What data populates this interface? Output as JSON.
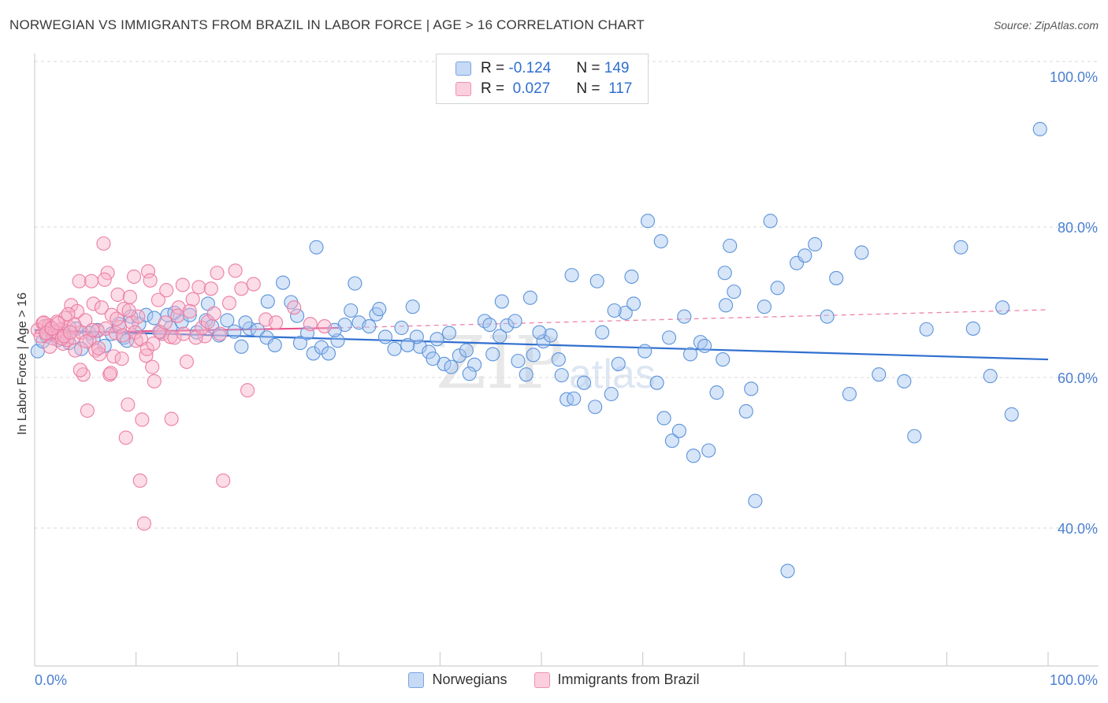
{
  "title": "NORWEGIAN VS IMMIGRANTS FROM BRAZIL IN LABOR FORCE | AGE > 16 CORRELATION CHART",
  "source": "Source: ZipAtlas.com",
  "watermark": {
    "zip": "ZIP",
    "atlas": "atlas"
  },
  "stats": {
    "r_label": "R =",
    "n_label": "N =",
    "rows": [
      {
        "r": "-0.124",
        "n": "149",
        "fill": "#c6d9f5",
        "stroke": "#7aa6e0"
      },
      {
        "r": " 0.027",
        "n": "117",
        "fill": "#fbcfdd",
        "stroke": "#ee93b2"
      }
    ]
  },
  "legend": {
    "items": [
      {
        "label": "Norwegians",
        "fill": "#c6d9f5",
        "stroke": "#7aa6e0"
      },
      {
        "label": "Immigrants from Brazil",
        "fill": "#fbcfdd",
        "stroke": "#ee93b2"
      }
    ]
  },
  "chart_data": {
    "type": "scatter",
    "title": "NORWEGIAN VS IMMIGRANTS FROM BRAZIL IN LABOR FORCE | AGE > 16 CORRELATION CHART",
    "xlabel": "",
    "ylabel": "In Labor Force | Age > 16",
    "x_tick_labels": [
      "0.0%",
      "100.0%"
    ],
    "y_tick_labels": [
      "100.0%",
      "80.0%",
      "60.0%",
      "40.0%"
    ],
    "y_ticks": [
      100,
      80,
      60,
      40
    ],
    "xlim": [
      0,
      100
    ],
    "ylim": [
      20,
      102
    ],
    "grid": true,
    "legend_position": "bottom",
    "colors": {
      "blue": "#5b93db",
      "pink": "#ec7ea3",
      "blue_line": "#2f6fcf",
      "pink_line": "#e8508a"
    },
    "series": [
      {
        "name": "Norwegians",
        "trend": {
          "x": [
            0,
            100
          ],
          "y": [
            66.3,
            62.4
          ],
          "dashed": false
        },
        "points": [
          [
            0.3,
            63.5
          ],
          [
            0.8,
            64.8
          ],
          [
            1.2,
            65.5
          ],
          [
            1.8,
            66.0
          ],
          [
            2.3,
            65.0
          ],
          [
            2.9,
            65.8
          ],
          [
            3.4,
            64.6
          ],
          [
            4.1,
            66.5
          ],
          [
            4.6,
            63.8
          ],
          [
            5.4,
            65.9
          ],
          [
            6.2,
            66.3
          ],
          [
            6.9,
            64.2
          ],
          [
            7.6,
            65.8
          ],
          [
            8.3,
            67.1
          ],
          [
            8.8,
            65.3
          ],
          [
            9.5,
            68.1
          ],
          [
            10.3,
            67.1
          ],
          [
            11.0,
            68.3
          ],
          [
            11.8,
            67.9
          ],
          [
            12.4,
            66.0
          ],
          [
            13.1,
            68.3
          ],
          [
            13.8,
            68.6
          ],
          [
            14.5,
            67.4
          ],
          [
            15.3,
            68.3
          ],
          [
            16.0,
            66.0
          ],
          [
            16.9,
            67.6
          ],
          [
            17.5,
            66.8
          ],
          [
            18.2,
            65.6
          ],
          [
            19.0,
            67.6
          ],
          [
            19.7,
            66.1
          ],
          [
            20.4,
            64.1
          ],
          [
            21.2,
            66.5
          ],
          [
            22.0,
            66.3
          ],
          [
            22.9,
            65.3
          ],
          [
            23.7,
            64.3
          ],
          [
            24.5,
            72.6
          ],
          [
            25.3,
            70.0
          ],
          [
            26.2,
            64.6
          ],
          [
            26.9,
            65.9
          ],
          [
            27.5,
            63.2
          ],
          [
            28.3,
            64.0
          ],
          [
            29.0,
            63.2
          ],
          [
            29.9,
            64.9
          ],
          [
            30.6,
            67.0
          ],
          [
            31.2,
            68.9
          ],
          [
            32.0,
            67.3
          ],
          [
            33.0,
            66.8
          ],
          [
            33.7,
            68.4
          ],
          [
            34.6,
            65.4
          ],
          [
            35.5,
            63.8
          ],
          [
            36.2,
            66.6
          ],
          [
            37.3,
            69.4
          ],
          [
            38.0,
            64.1
          ],
          [
            38.9,
            63.4
          ],
          [
            39.7,
            65.1
          ],
          [
            40.4,
            61.8
          ],
          [
            41.1,
            61.4
          ],
          [
            41.9,
            62.9
          ],
          [
            42.6,
            63.6
          ],
          [
            43.4,
            61.7
          ],
          [
            44.4,
            67.5
          ],
          [
            45.2,
            63.1
          ],
          [
            45.9,
            65.5
          ],
          [
            46.6,
            66.9
          ],
          [
            47.7,
            62.2
          ],
          [
            48.5,
            60.4
          ],
          [
            49.2,
            63.0
          ],
          [
            50.2,
            64.8
          ],
          [
            50.9,
            65.6
          ],
          [
            51.7,
            62.4
          ],
          [
            52.5,
            57.1
          ],
          [
            53.2,
            57.2
          ],
          [
            54.2,
            59.3
          ],
          [
            55.3,
            56.1
          ],
          [
            56.0,
            66.0
          ],
          [
            56.9,
            57.8
          ],
          [
            57.6,
            61.8
          ],
          [
            58.3,
            68.6
          ],
          [
            59.1,
            69.8
          ],
          [
            60.2,
            63.5
          ],
          [
            61.4,
            59.3
          ],
          [
            62.1,
            54.6
          ],
          [
            62.9,
            51.6
          ],
          [
            63.6,
            52.9
          ],
          [
            64.1,
            68.1
          ],
          [
            65.0,
            49.6
          ],
          [
            65.7,
            64.7
          ],
          [
            66.5,
            50.3
          ],
          [
            67.3,
            58.0
          ],
          [
            68.2,
            69.6
          ],
          [
            69.0,
            71.4
          ],
          [
            70.2,
            55.5
          ],
          [
            71.1,
            43.6
          ],
          [
            72.0,
            69.4
          ],
          [
            73.3,
            71.9
          ],
          [
            74.3,
            34.3
          ],
          [
            75.2,
            75.2
          ],
          [
            76.0,
            76.2
          ],
          [
            77.0,
            77.7
          ],
          [
            78.2,
            68.1
          ],
          [
            79.1,
            73.2
          ],
          [
            80.4,
            57.8
          ],
          [
            81.6,
            76.6
          ],
          [
            83.3,
            60.4
          ],
          [
            85.8,
            59.5
          ],
          [
            86.8,
            52.2
          ],
          [
            88.0,
            66.4
          ],
          [
            91.4,
            77.3
          ],
          [
            92.6,
            66.5
          ],
          [
            94.3,
            60.2
          ],
          [
            95.5,
            69.3
          ],
          [
            96.4,
            55.1
          ],
          [
            99.2,
            93.0
          ],
          [
            53.0,
            73.6
          ],
          [
            60.5,
            80.8
          ],
          [
            68.6,
            77.5
          ],
          [
            72.6,
            80.8
          ],
          [
            68.1,
            73.9
          ],
          [
            37.7,
            65.4
          ],
          [
            47.4,
            67.5
          ],
          [
            5.8,
            65.2
          ],
          [
            13.4,
            66.6
          ],
          [
            23.0,
            70.1
          ],
          [
            27.8,
            77.3
          ],
          [
            31.6,
            72.5
          ],
          [
            36.8,
            64.3
          ],
          [
            40.9,
            65.9
          ],
          [
            44.9,
            67.0
          ],
          [
            48.9,
            70.6
          ],
          [
            52.0,
            60.3
          ],
          [
            55.5,
            72.8
          ],
          [
            58.9,
            73.4
          ],
          [
            61.8,
            78.1
          ],
          [
            64.7,
            63.1
          ],
          [
            67.9,
            62.4
          ],
          [
            70.7,
            58.5
          ],
          [
            9.1,
            64.9
          ],
          [
            17.1,
            69.8
          ],
          [
            20.8,
            67.3
          ],
          [
            25.9,
            68.2
          ],
          [
            29.6,
            66.3
          ],
          [
            34.0,
            69.1
          ],
          [
            39.3,
            62.5
          ],
          [
            42.9,
            60.5
          ],
          [
            46.1,
            70.1
          ],
          [
            49.8,
            66.0
          ],
          [
            57.2,
            68.9
          ],
          [
            62.6,
            65.3
          ],
          [
            66.1,
            64.2
          ]
        ]
      },
      {
        "name": "Immigrants from Brazil",
        "trend": {
          "x": [
            0,
            30
          ],
          "y": [
            65.9,
            66.6
          ],
          "dashed": false,
          "extend_dashed_to": [
            100,
            69.0
          ]
        },
        "points": [
          [
            0.3,
            66.3
          ],
          [
            0.6,
            65.5
          ],
          [
            0.8,
            67.2
          ],
          [
            1.0,
            66.8
          ],
          [
            1.2,
            65.9
          ],
          [
            1.4,
            66.9
          ],
          [
            1.6,
            66.6
          ],
          [
            1.8,
            65.2
          ],
          [
            2.0,
            66.0
          ],
          [
            2.2,
            67.4
          ],
          [
            2.4,
            65.7
          ],
          [
            2.6,
            66.4
          ],
          [
            2.8,
            64.5
          ],
          [
            3.0,
            67.9
          ],
          [
            3.2,
            65.0
          ],
          [
            3.4,
            66.7
          ],
          [
            3.6,
            69.6
          ],
          [
            3.8,
            65.3
          ],
          [
            4.0,
            63.6
          ],
          [
            4.2,
            68.8
          ],
          [
            4.4,
            72.8
          ],
          [
            4.6,
            66.0
          ],
          [
            4.8,
            60.4
          ],
          [
            5.0,
            67.6
          ],
          [
            5.2,
            55.6
          ],
          [
            5.4,
            64.9
          ],
          [
            5.6,
            72.8
          ],
          [
            5.8,
            69.8
          ],
          [
            6.0,
            63.6
          ],
          [
            6.2,
            66.2
          ],
          [
            6.4,
            63.1
          ],
          [
            6.6,
            69.3
          ],
          [
            6.8,
            77.8
          ],
          [
            7.0,
            66.5
          ],
          [
            7.2,
            73.9
          ],
          [
            7.4,
            60.4
          ],
          [
            7.6,
            68.3
          ],
          [
            7.8,
            62.8
          ],
          [
            8.0,
            65.9
          ],
          [
            8.2,
            71.0
          ],
          [
            8.4,
            66.7
          ],
          [
            8.6,
            62.5
          ],
          [
            8.8,
            69.1
          ],
          [
            9.0,
            52.0
          ],
          [
            9.2,
            56.4
          ],
          [
            9.4,
            70.7
          ],
          [
            9.6,
            67.3
          ],
          [
            9.8,
            73.4
          ],
          [
            10.0,
            64.9
          ],
          [
            10.2,
            68.1
          ],
          [
            10.4,
            46.3
          ],
          [
            10.6,
            54.4
          ],
          [
            10.8,
            40.6
          ],
          [
            11.0,
            62.9
          ],
          [
            11.2,
            74.1
          ],
          [
            11.4,
            72.9
          ],
          [
            11.6,
            61.4
          ],
          [
            11.8,
            59.5
          ],
          [
            12.2,
            70.3
          ],
          [
            12.6,
            65.8
          ],
          [
            13.0,
            71.6
          ],
          [
            13.4,
            65.4
          ],
          [
            13.8,
            65.3
          ],
          [
            14.2,
            69.3
          ],
          [
            14.6,
            72.3
          ],
          [
            15.0,
            62.1
          ],
          [
            15.6,
            70.4
          ],
          [
            16.2,
            72.0
          ],
          [
            16.8,
            65.5
          ],
          [
            17.4,
            71.8
          ],
          [
            18.0,
            73.9
          ],
          [
            18.6,
            46.3
          ],
          [
            19.2,
            69.9
          ],
          [
            19.8,
            74.2
          ],
          [
            20.4,
            71.8
          ],
          [
            21.0,
            58.3
          ],
          [
            21.6,
            72.4
          ],
          [
            22.8,
            67.7
          ],
          [
            23.8,
            67.3
          ],
          [
            25.6,
            69.3
          ],
          [
            27.2,
            67.1
          ],
          [
            28.6,
            66.8
          ],
          [
            0.9,
            67.3
          ],
          [
            1.5,
            64.1
          ],
          [
            2.1,
            66.1
          ],
          [
            2.7,
            65.2
          ],
          [
            3.3,
            68.4
          ],
          [
            3.9,
            67.0
          ],
          [
            4.5,
            61.0
          ],
          [
            5.1,
            64.8
          ],
          [
            5.7,
            66.3
          ],
          [
            6.3,
            63.9
          ],
          [
            6.9,
            73.0
          ],
          [
            7.5,
            60.6
          ],
          [
            8.1,
            67.8
          ],
          [
            8.7,
            65.6
          ],
          [
            9.3,
            68.9
          ],
          [
            9.9,
            66.0
          ],
          [
            10.5,
            65.1
          ],
          [
            11.1,
            63.8
          ],
          [
            11.7,
            64.5
          ],
          [
            12.3,
            66.1
          ],
          [
            12.9,
            67.3
          ],
          [
            13.5,
            54.5
          ],
          [
            14.1,
            68.2
          ],
          [
            14.7,
            65.8
          ],
          [
            15.3,
            68.8
          ],
          [
            15.9,
            65.3
          ],
          [
            16.5,
            66.6
          ],
          [
            17.1,
            67.4
          ],
          [
            17.7,
            68.5
          ],
          [
            18.3,
            65.8
          ],
          [
            1.1,
            65.9
          ],
          [
            1.7,
            66.5
          ],
          [
            2.3,
            67.2
          ],
          [
            2.9,
            65.5
          ],
          [
            3.5,
            66.0
          ]
        ]
      }
    ]
  }
}
